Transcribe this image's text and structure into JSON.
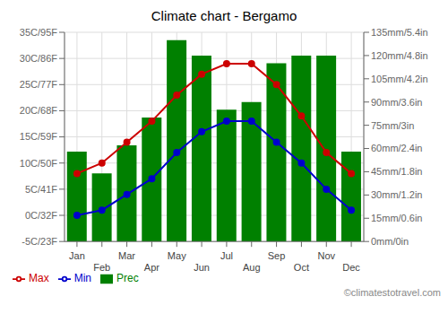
{
  "chart_data": {
    "type": "bar",
    "title": "Climate chart - Bergamo",
    "categories": [
      "Jan",
      "Feb",
      "Mar",
      "Apr",
      "May",
      "Jun",
      "Jul",
      "Aug",
      "Sep",
      "Oct",
      "Nov",
      "Dec"
    ],
    "series": [
      {
        "name": "Prec",
        "type": "bar",
        "color": "#008000",
        "axis": "y2",
        "values": [
          58,
          44,
          62,
          80,
          130,
          120,
          85,
          90,
          115,
          120,
          120,
          58
        ]
      },
      {
        "name": "Min",
        "type": "line",
        "color": "#0000cc",
        "marker": "circle",
        "values": [
          0,
          1,
          4,
          7,
          12,
          16,
          18,
          18,
          14,
          10,
          5,
          1
        ]
      },
      {
        "name": "Max",
        "type": "line",
        "color": "#cc0000",
        "marker": "circle",
        "values": [
          8,
          10,
          14,
          18,
          23,
          27,
          29,
          29,
          25,
          19,
          12,
          8
        ]
      }
    ],
    "ylim": [
      -5,
      35
    ],
    "yticks": [
      {
        "value": -5,
        "label": "-5C/23F"
      },
      {
        "value": 0,
        "label": "0C/32F"
      },
      {
        "value": 5,
        "label": "5C/41F"
      },
      {
        "value": 10,
        "label": "10C/50F"
      },
      {
        "value": 15,
        "label": "15C/59F"
      },
      {
        "value": 20,
        "label": "20C/68F"
      },
      {
        "value": 25,
        "label": "25C/77F"
      },
      {
        "value": 30,
        "label": "30C/86F"
      },
      {
        "value": 35,
        "label": "35C/95F"
      }
    ],
    "y2lim": [
      0,
      135
    ],
    "y2ticks": [
      {
        "value": 0,
        "label": "0mm/0in"
      },
      {
        "value": 15,
        "label": "15mm/0.6in"
      },
      {
        "value": 30,
        "label": "30mm/1.2in"
      },
      {
        "value": 45,
        "label": "45mm/1.8in"
      },
      {
        "value": 60,
        "label": "60mm/2.4in"
      },
      {
        "value": 75,
        "label": "75mm/3in"
      },
      {
        "value": 90,
        "label": "90mm/3.6in"
      },
      {
        "value": 105,
        "label": "105mm/4.2in"
      },
      {
        "value": 120,
        "label": "120mm/4.8in"
      },
      {
        "value": 135,
        "label": "135mm/5.4in"
      }
    ],
    "grid": true,
    "legend": "bottom",
    "annotations": [
      "©climatestotravel.com"
    ]
  }
}
